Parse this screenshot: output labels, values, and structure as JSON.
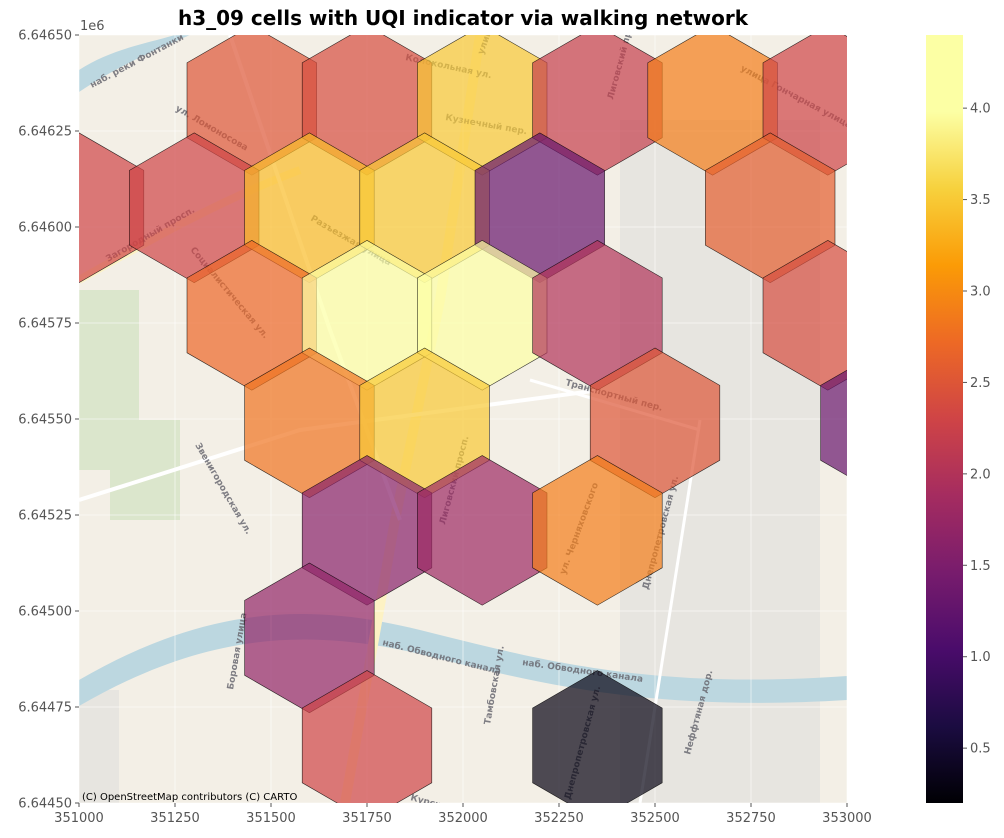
{
  "chart_data": {
    "type": "heatmap",
    "title": "h3_09 cells with UQI indicator via walking network",
    "xlabel": "",
    "ylabel": "",
    "xlim": [
      351000,
      353000
    ],
    "ylim": [
      6644500,
      6646500
    ],
    "x_ticks": [
      351000,
      351250,
      351500,
      351750,
      352000,
      352250,
      352500,
      352750,
      353000
    ],
    "x_tick_labels": [
      "351000",
      "351250",
      "351500",
      "351750",
      "352000",
      "352250",
      "352500",
      "352750",
      "353000"
    ],
    "y_tick_values": [
      6644500,
      6644750,
      6645000,
      6645250,
      6645500,
      6645750,
      6646000,
      6646250,
      6646500
    ],
    "y_tick_labels": [
      "6.64450",
      "6.64475",
      "6.64500",
      "6.64525",
      "6.64550",
      "6.64575",
      "6.64600",
      "6.64625",
      "6.64650"
    ],
    "y_offset_label": "1e6",
    "grid": true,
    "colormap": "inferno",
    "colorbar": {
      "vmin": 0.2,
      "vmax": 4.4,
      "ticks": [
        0.5,
        1.0,
        1.5,
        2.0,
        2.5,
        3.0,
        3.5,
        4.0
      ],
      "tick_labels": [
        "0.5",
        "1.0",
        "1.5",
        "2.0",
        "2.5",
        "3.0",
        "3.5",
        "4.0"
      ]
    },
    "cells": [
      {
        "x": 351450,
        "y": 6646330,
        "value": 2.5
      },
      {
        "x": 351750,
        "y": 6646330,
        "value": 2.4
      },
      {
        "x": 352050,
        "y": 6646330,
        "value": 3.5
      },
      {
        "x": 352350,
        "y": 6646330,
        "value": 2.2
      },
      {
        "x": 352650,
        "y": 6646330,
        "value": 2.9
      },
      {
        "x": 352950,
        "y": 6646330,
        "value": 2.3
      },
      {
        "x": 351000,
        "y": 6646050,
        "value": 2.3
      },
      {
        "x": 351300,
        "y": 6646050,
        "value": 2.3
      },
      {
        "x": 351600,
        "y": 6646050,
        "value": 3.4
      },
      {
        "x": 351900,
        "y": 6646050,
        "value": 3.5
      },
      {
        "x": 352200,
        "y": 6646050,
        "value": 1.3
      },
      {
        "x": 352800,
        "y": 6646050,
        "value": 2.6
      },
      {
        "x": 351450,
        "y": 6645770,
        "value": 2.7
      },
      {
        "x": 351750,
        "y": 6645770,
        "value": 4.3
      },
      {
        "x": 352050,
        "y": 6645770,
        "value": 4.4
      },
      {
        "x": 352350,
        "y": 6645770,
        "value": 2.0
      },
      {
        "x": 352950,
        "y": 6645770,
        "value": 2.4
      },
      {
        "x": 351600,
        "y": 6645490,
        "value": 2.8
      },
      {
        "x": 351900,
        "y": 6645490,
        "value": 3.5
      },
      {
        "x": 352500,
        "y": 6645490,
        "value": 2.5
      },
      {
        "x": 353100,
        "y": 6645490,
        "value": 1.3
      },
      {
        "x": 351750,
        "y": 6645210,
        "value": 1.6
      },
      {
        "x": 352050,
        "y": 6645210,
        "value": 1.8
      },
      {
        "x": 352350,
        "y": 6645210,
        "value": 2.9
      },
      {
        "x": 351600,
        "y": 6644930,
        "value": 1.7
      },
      {
        "x": 351750,
        "y": 6644650,
        "value": 2.3
      },
      {
        "x": 352350,
        "y": 6644650,
        "value": 0.3
      }
    ]
  },
  "basemap": {
    "attribution": "(C) OpenStreetMap contributors (C) CARTO",
    "street_labels": [
      "наб. реки Фонтанки",
      "Колокольная ул.",
      "улица Марата",
      "Кузнечный пер.",
      "Лиговский просп.",
      "улица Гончарная улица",
      "ул. Ломоносова",
      "Загородный просп.",
      "Разъезжая улица",
      "Социалистическая ул.",
      "Транспортный пер.",
      "Звенигородская ул.",
      "Лиговский просп.",
      "ул. Черняховского",
      "Днепропетровская ул.",
      "наб. Обводного канала",
      "наб. Обводного канала",
      "Боровая улица",
      "Тамбовская ул.",
      "Курская ул.",
      "Днепропетровская ул.",
      "Неффтяная дор."
    ]
  }
}
